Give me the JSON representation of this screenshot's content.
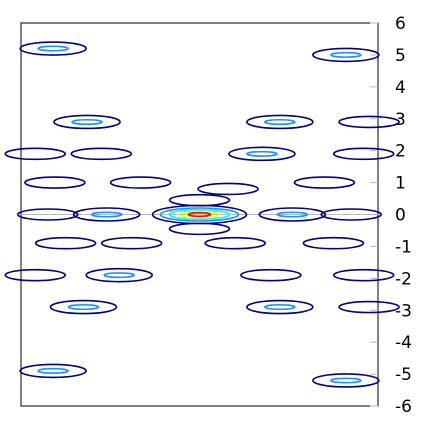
{
  "chart_data": {
    "type": "contour",
    "title": "",
    "xlabel": "",
    "ylabel": "",
    "x_tick_labels": [],
    "ylim": [
      -6,
      6
    ],
    "y_axis_side": "right",
    "y_ticks": [
      6,
      5,
      4,
      3,
      2,
      1,
      0,
      -1,
      -2,
      -3,
      -4,
      -5,
      -6
    ],
    "y_tick_labels": [
      "6",
      "5",
      "4",
      "3",
      "2",
      "1",
      "0",
      "-1",
      "-2",
      "-3",
      "-4",
      "-5",
      "-6"
    ],
    "xlim": [
      -1,
      1
    ],
    "reference_line_y": 0,
    "grid": false,
    "legend": "none",
    "contour_levels": [
      "#000080",
      "#1e90ff",
      "#00ffff",
      "#ffff00",
      "#ff0000"
    ],
    "features": [
      {
        "x": 0.0,
        "y": 0.0,
        "level": 5
      },
      {
        "x": -0.52,
        "y": 0.0,
        "level": 2
      },
      {
        "x": 0.52,
        "y": 0.0,
        "level": 2
      },
      {
        "x": -0.85,
        "y": 0.0,
        "level": 1
      },
      {
        "x": 0.85,
        "y": 0.0,
        "level": 1
      },
      {
        "x": 0.0,
        "y": 0.45,
        "level": 1
      },
      {
        "x": 0.0,
        "y": -0.45,
        "level": 1
      },
      {
        "x": -0.33,
        "y": 1.0,
        "level": 1
      },
      {
        "x": 0.16,
        "y": 0.8,
        "level": 1
      },
      {
        "x": -0.81,
        "y": 1.0,
        "level": 1
      },
      {
        "x": 0.7,
        "y": 1.0,
        "level": 1
      },
      {
        "x": -0.38,
        "y": -0.9,
        "level": 1
      },
      {
        "x": 0.2,
        "y": -0.9,
        "level": 1
      },
      {
        "x": -0.75,
        "y": -0.9,
        "level": 1
      },
      {
        "x": 0.75,
        "y": -0.9,
        "level": 1
      },
      {
        "x": -0.55,
        "y": 1.9,
        "level": 1
      },
      {
        "x": 0.35,
        "y": 1.9,
        "level": 2
      },
      {
        "x": -0.92,
        "y": 1.9,
        "level": 1
      },
      {
        "x": 0.92,
        "y": 1.9,
        "level": 1
      },
      {
        "x": -0.45,
        "y": -1.9,
        "level": 2
      },
      {
        "x": 0.4,
        "y": -1.9,
        "level": 1
      },
      {
        "x": -0.92,
        "y": -1.9,
        "level": 1
      },
      {
        "x": 0.92,
        "y": -1.9,
        "level": 1
      },
      {
        "x": -0.63,
        "y": 2.9,
        "level": 2
      },
      {
        "x": 0.45,
        "y": 2.9,
        "level": 2
      },
      {
        "x": 0.95,
        "y": 2.9,
        "level": 1
      },
      {
        "x": -0.65,
        "y": -2.9,
        "level": 2
      },
      {
        "x": 0.45,
        "y": -2.9,
        "level": 2
      },
      {
        "x": 0.95,
        "y": -2.9,
        "level": 1
      },
      {
        "x": -0.82,
        "y": 5.2,
        "level": 2
      },
      {
        "x": 0.82,
        "y": 5.0,
        "level": 2
      },
      {
        "x": -0.82,
        "y": -4.9,
        "level": 2
      },
      {
        "x": 0.82,
        "y": -5.2,
        "level": 2
      }
    ]
  }
}
